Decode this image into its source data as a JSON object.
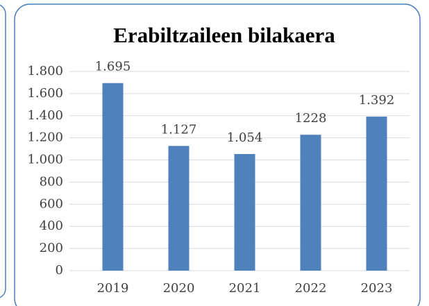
{
  "chart_data": {
    "type": "bar",
    "title": "Erabiltzaileen bilakaera",
    "categories": [
      "2019",
      "2020",
      "2021",
      "2022",
      "2023"
    ],
    "values": [
      1695,
      1127,
      1054,
      1228,
      1392
    ],
    "value_labels": [
      "1.695",
      "1.127",
      "1.054",
      "1228",
      "1.392"
    ],
    "color": "#4f81bd",
    "ylim": [
      0,
      1800
    ],
    "yticks": [
      0,
      200,
      400,
      600,
      800,
      {
        "value": 1000,
        "label": "1.000"
      },
      {
        "value": 1200,
        "label": "1.200"
      },
      {
        "value": 1400,
        "label": "1.400"
      },
      {
        "value": 1600,
        "label": "1.600"
      },
      {
        "value": 1800,
        "label": "1.800"
      }
    ],
    "grid": true
  }
}
